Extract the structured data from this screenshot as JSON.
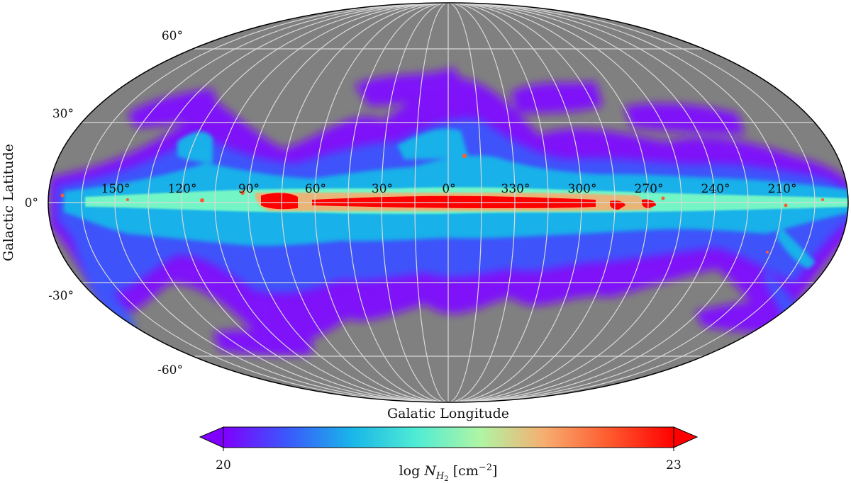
{
  "map": {
    "projection": "mollweide",
    "background_color": "#808080",
    "grid_color": "#d9d9d9",
    "outline_color": "#000000",
    "xlabel": "Galatic Longitude",
    "ylabel": "Galactic Latitude",
    "longitude_ticks": [
      "150°",
      "120°",
      "90°",
      "60°",
      "30°",
      "0°",
      "330°",
      "300°",
      "270°",
      "240°",
      "210°"
    ],
    "latitude_ticks": [
      "60°",
      "30°",
      "0°",
      "-30°",
      "-60°"
    ]
  },
  "colorbar": {
    "label": "log N_H2 [cm^-2]",
    "label_prefix": "log ",
    "label_var": "N",
    "label_sub": "H",
    "label_subsub": "2",
    "label_unit_open": " [cm",
    "label_unit_exp": "−2",
    "label_unit_close": "]",
    "min_label": "20",
    "max_label": "23",
    "vmin": 20,
    "vmax": 23,
    "extend": "both",
    "colormap": "rainbow",
    "colors": [
      "#7f00ff",
      "#3a59fb",
      "#19b6e9",
      "#7ffdc3",
      "#c8e38f",
      "#f6ad70",
      "#ff5a2e",
      "#ff0000"
    ]
  }
}
